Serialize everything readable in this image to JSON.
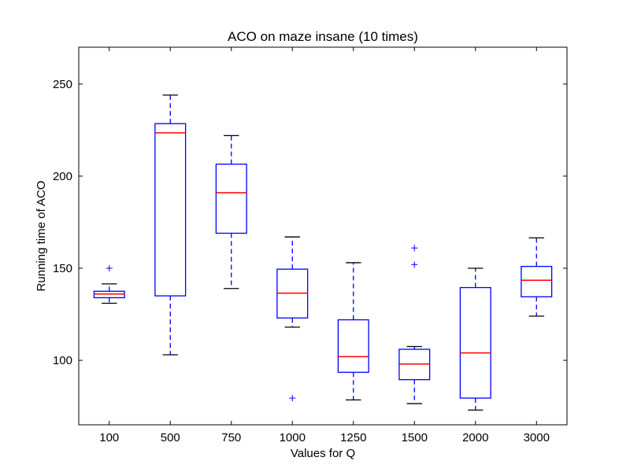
{
  "chart_data": {
    "type": "boxplot",
    "title": "ACO on maze insane (10 times)",
    "xlabel": "Values for Q",
    "ylabel": "Running time of ACO",
    "ylim": [
      65,
      270
    ],
    "yticks": [
      100,
      150,
      200,
      250
    ],
    "grid": false,
    "categories": [
      "100",
      "500",
      "750",
      "1000",
      "1250",
      "1500",
      "2000",
      "3000"
    ],
    "boxes": [
      {
        "whisker_low": 131,
        "q1": 134,
        "median": 136,
        "q3": 137.5,
        "whisker_high": 141.5,
        "fliers": [
          150
        ]
      },
      {
        "whisker_low": 103,
        "q1": 135,
        "median": 223.5,
        "q3": 228.5,
        "whisker_high": 244,
        "fliers": []
      },
      {
        "whisker_low": 139,
        "q1": 169,
        "median": 191,
        "q3": 206.5,
        "whisker_high": 222,
        "fliers": []
      },
      {
        "whisker_low": 118,
        "q1": 123,
        "median": 136.5,
        "q3": 149.5,
        "whisker_high": 167,
        "fliers": [
          79.5
        ]
      },
      {
        "whisker_low": 78.5,
        "q1": 93.5,
        "median": 102,
        "q3": 122,
        "whisker_high": 153,
        "fliers": []
      },
      {
        "whisker_low": 76.5,
        "q1": 89.5,
        "median": 98,
        "q3": 106,
        "whisker_high": 107.5,
        "fliers": [
          152,
          161
        ]
      },
      {
        "whisker_low": 73,
        "q1": 79.5,
        "median": 104,
        "q3": 139.5,
        "whisker_high": 150,
        "fliers": []
      },
      {
        "whisker_low": 124,
        "q1": 134.5,
        "median": 143.5,
        "q3": 151,
        "whisker_high": 166.5,
        "fliers": []
      }
    ],
    "colors": {
      "box": "#0000ff",
      "median": "#ff0000",
      "flier": "#0000ff",
      "cap": "#000000",
      "axis": "#000000"
    }
  }
}
